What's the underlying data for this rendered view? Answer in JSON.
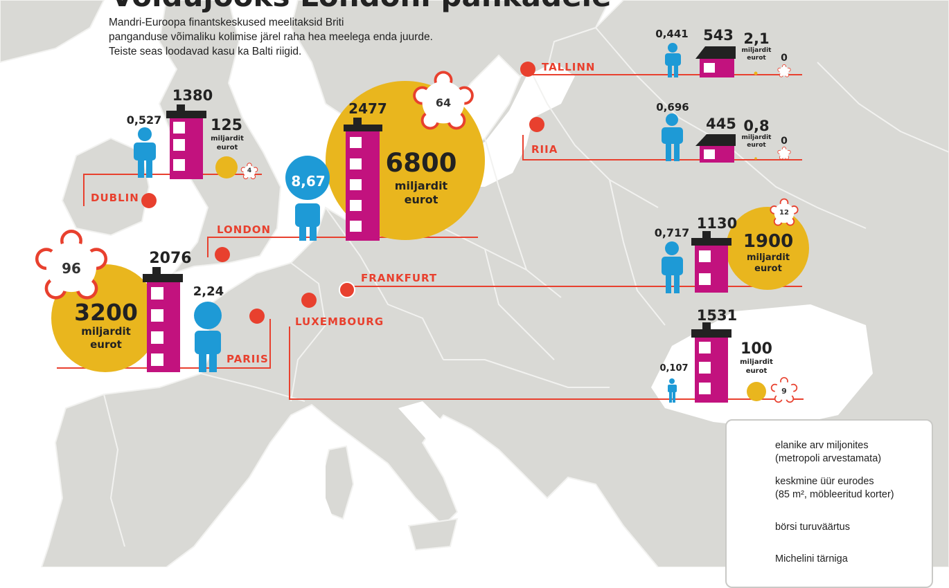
{
  "header": {
    "title": "Võidujooks Londoni pankadele",
    "intro": [
      "Mandri-Euroopa finantskeskused meelitaksid Briti",
      "panganduse võimaliku kolimise järel raha hea meelega enda juurde.",
      "Teiste seas loodavad kasu ka Balti riigid."
    ]
  },
  "colors": {
    "sea": "#ffffff",
    "land": "#d9d9d5",
    "border": "#f2f2f0",
    "accent_red": "#e8402e",
    "population_blue": "#1e9ad6",
    "rent_magenta": "#c2127e",
    "market_gold": "#e9b61e"
  },
  "cities": [
    {
      "name": "TALLINN",
      "population": "0,441",
      "rent": "543",
      "market_value": "2,1",
      "market_unit": [
        "miljardit",
        "eurot"
      ],
      "michelin": "0"
    },
    {
      "name": "RIIA",
      "population": "0,696",
      "rent": "445",
      "market_value": "0,8",
      "market_unit": [
        "miljardit",
        "eurot"
      ],
      "michelin": "0"
    },
    {
      "name": "DUBLIN",
      "population": "0,527",
      "rent": "1380",
      "market_value": "125",
      "market_unit": [
        "miljardit",
        "eurot"
      ],
      "michelin": "4"
    },
    {
      "name": "LONDON",
      "population": "8,67",
      "rent": "2477",
      "market_value": "6800",
      "market_unit": [
        "miljardit",
        "eurot"
      ],
      "michelin": "64"
    },
    {
      "name": "PARIIS",
      "population": "2,24",
      "rent": "2076",
      "market_value": "3200",
      "market_unit": [
        "miljardit",
        "eurot"
      ],
      "michelin": "96"
    },
    {
      "name": "FRANKFURT",
      "population": "0,717",
      "rent": "1130",
      "market_value": "1900",
      "market_unit": [
        "miljardit",
        "eurot"
      ],
      "michelin": "12"
    },
    {
      "name": "LUXEMBOURG",
      "population": "0,107",
      "rent": "1531",
      "market_value": "100",
      "market_unit": [
        "miljardit",
        "eurot"
      ],
      "michelin": "9"
    }
  ],
  "legend": {
    "population": [
      "elanike arv miljonites",
      "(metropoli arvestamata)"
    ],
    "rent": [
      "keskmine üür eurodes",
      "(85 m², möbleeritud korter)"
    ],
    "market": "börsi turuväärtus",
    "michelin": "Michelini tärniga"
  }
}
